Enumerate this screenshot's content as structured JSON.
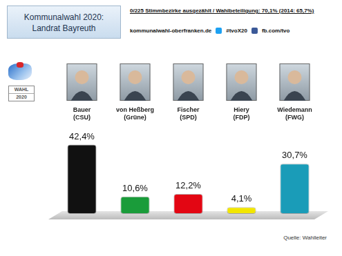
{
  "chart_data": {
    "type": "bar",
    "title": [
      "Kommunalwahl 2020:",
      "Landrat Bayreuth"
    ],
    "subtitle": "0/225 Stimmbezirke ausgezählt / Wahlbeteiligung: 70,1% (2014: 65,7%)",
    "links": [
      "kommunalwahl-oberfranken.de",
      "#tvoX20",
      "fb.com/tvo"
    ],
    "badge": [
      "WAHL",
      "2020"
    ],
    "source": "Quelle: Wahlleiter",
    "categories": [
      [
        "Bauer",
        "(CSU)"
      ],
      [
        "von Heßberg",
        "(Grüne)"
      ],
      [
        "Fischer",
        "(SPD)"
      ],
      [
        "Hiery",
        "(FDP)"
      ],
      [
        "Wiedemann",
        "(FWG)"
      ]
    ],
    "values": [
      42.4,
      10.6,
      12.2,
      4.1,
      30.7
    ],
    "value_labels": [
      "42,4%",
      "10,6%",
      "12,2%",
      "4,1%",
      "30,7%"
    ],
    "colors": [
      "#111111",
      "#1a9c3a",
      "#e30613",
      "#f2e600",
      "#1a9cb8"
    ],
    "ylim": [
      0,
      55
    ],
    "grid": false,
    "data_labels": true,
    "tick_labels": "x"
  }
}
